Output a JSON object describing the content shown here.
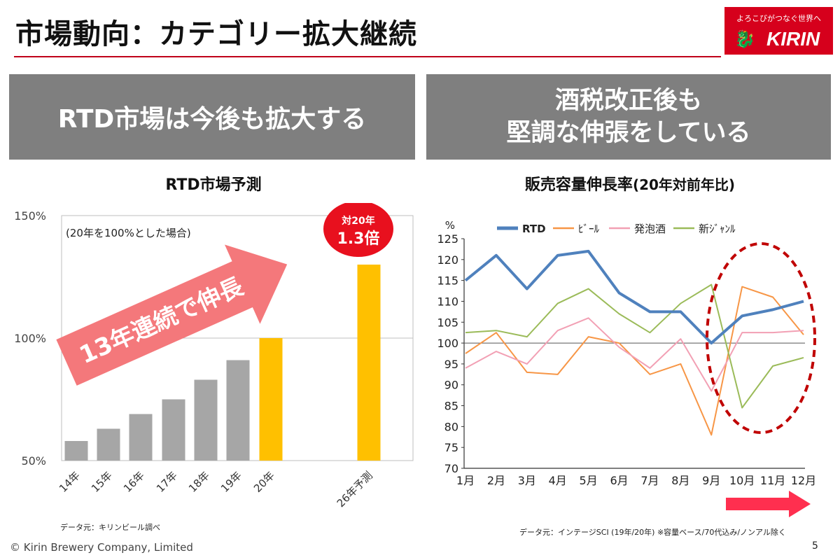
{
  "header": {
    "title": "市場動向：カテゴリー拡大継続",
    "logo_tagline": "よろこびがつなぐ世界へ",
    "logo_name": "KIRIN"
  },
  "banners": {
    "left": "RTD市場は今後も拡大する",
    "right_line1": "酒税改正後も",
    "right_line2": "堅調な伸張をしている"
  },
  "colors": {
    "accent": "#c0001a",
    "banner_gray": "#7f7f7f",
    "bar_gray": "#a6a6a6",
    "bar_highlight": "#ffc000",
    "arrow_pink": "#f4787b",
    "badge_red": "#e8101e",
    "rtd": "#4f81bd",
    "beer": "#f79646",
    "happoshu": "#f2a0b4",
    "shin_genre": "#9bbb59"
  },
  "chart_data": [
    {
      "type": "bar",
      "title": "RTD市場予測",
      "annotation": "(20年を100%とした場合)",
      "arrow_label": "13年連続で伸長",
      "badge_line1": "対20年",
      "badge_line2": "1.3倍",
      "categories": [
        "14年",
        "15年",
        "16年",
        "17年",
        "18年",
        "19年",
        "20年",
        "26年予測"
      ],
      "values": [
        58,
        63,
        69,
        75,
        83,
        91,
        100,
        130
      ],
      "highlight": [
        "20年",
        "26年予測"
      ],
      "yticks": [
        "50%",
        "100%",
        "150%"
      ],
      "ylim": [
        50,
        150
      ],
      "source": "データ元：キリンビール調べ"
    },
    {
      "type": "line",
      "title": "販売容量伸長率",
      "title_suffix": "(20年対前年比)",
      "y_unit": "%",
      "ylim": [
        70,
        125
      ],
      "yticks": [
        125,
        120,
        115,
        110,
        105,
        100,
        95,
        90,
        85,
        80,
        75,
        70
      ],
      "reference_line": 100,
      "categories": [
        "1月",
        "2月",
        "3月",
        "4月",
        "5月",
        "6月",
        "7月",
        "8月",
        "9月",
        "10月",
        "11月",
        "12月"
      ],
      "series": [
        {
          "name": "RTD",
          "values": [
            115,
            121,
            113,
            121,
            122,
            112,
            107.5,
            107.5,
            100,
            106.5,
            108,
            110
          ]
        },
        {
          "name": "ﾋﾞｰﾙ",
          "values": [
            97.5,
            102.5,
            93,
            92.5,
            101.5,
            100,
            92.5,
            95,
            78,
            113.5,
            111,
            102
          ]
        },
        {
          "name": "発泡酒",
          "values": [
            94,
            98,
            95,
            103,
            106,
            99,
            94,
            101,
            88.5,
            102.5,
            102.5,
            103
          ]
        },
        {
          "name": "新ｼﾞｬﾝﾙ",
          "values": [
            102.5,
            103,
            101.5,
            109.5,
            113,
            107,
            102.5,
            109.5,
            114,
            84.5,
            94.5,
            96.5
          ]
        }
      ],
      "source": "データ元：インテージSCI (19年/20年) ※容量ベース/70代込み/ノンアル除く"
    }
  ],
  "footer": {
    "copyright": "© Kirin Brewery Company, Limited",
    "page": "5"
  }
}
